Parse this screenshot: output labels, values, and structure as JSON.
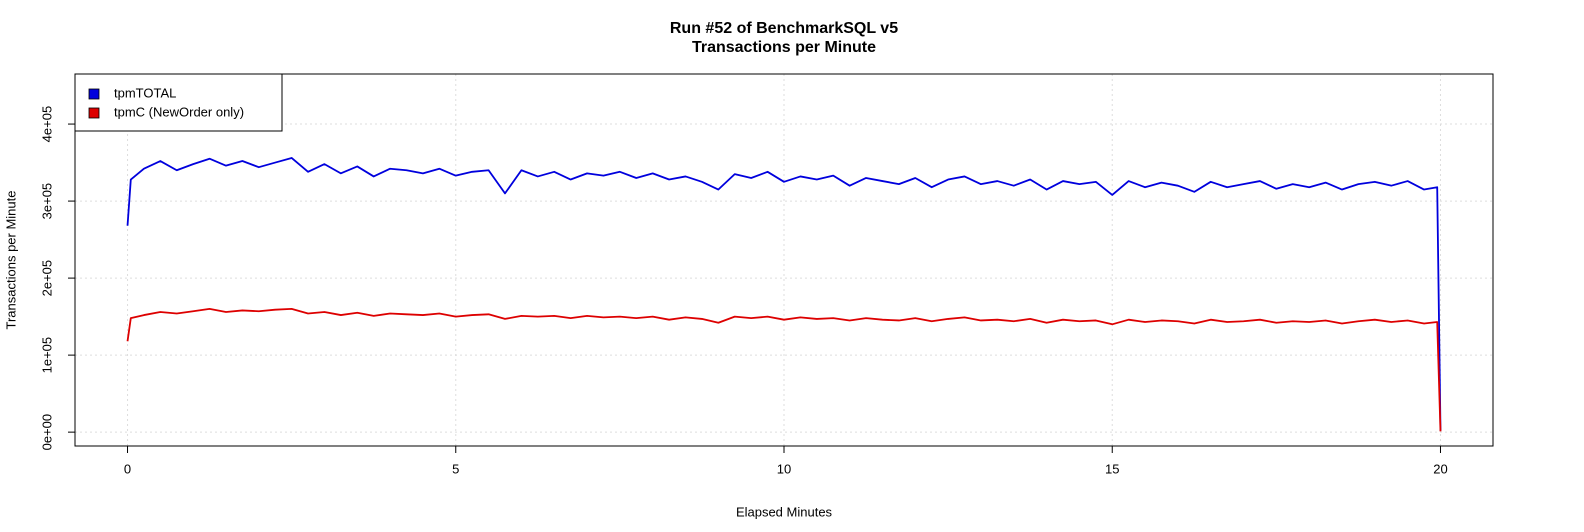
{
  "chart_data": {
    "type": "line",
    "title": "Run #52 of BenchmarkSQL v5",
    "subtitle": "Transactions per Minute",
    "x_label": "Elapsed Minutes",
    "y_label": "Transactions per Minute",
    "x": [
      0,
      0.05,
      0.25,
      0.5,
      0.75,
      1,
      1.25,
      1.5,
      1.75,
      2,
      2.25,
      2.5,
      2.75,
      3,
      3.25,
      3.5,
      3.75,
      4,
      4.25,
      4.5,
      4.75,
      5,
      5.25,
      5.5,
      5.75,
      6,
      6.25,
      6.5,
      6.75,
      7,
      7.25,
      7.5,
      7.75,
      8,
      8.25,
      8.5,
      8.75,
      9,
      9.25,
      9.5,
      9.75,
      10,
      10.25,
      10.5,
      10.75,
      11,
      11.25,
      11.5,
      11.75,
      12,
      12.25,
      12.5,
      12.75,
      13,
      13.25,
      13.5,
      13.75,
      14,
      14.25,
      14.5,
      14.75,
      15,
      15.25,
      15.5,
      15.75,
      16,
      16.25,
      16.5,
      16.75,
      17,
      17.25,
      17.5,
      17.75,
      18,
      18.25,
      18.5,
      18.75,
      19,
      19.25,
      19.5,
      19.75,
      19.95,
      20
    ],
    "series": [
      {
        "name": "tpmTOTAL",
        "color": "#0000dd",
        "values": [
          268000,
          328000,
          342000,
          352000,
          340000,
          348000,
          355000,
          346000,
          352000,
          344000,
          350000,
          356000,
          338000,
          348000,
          336000,
          345000,
          332000,
          342000,
          340000,
          336000,
          342000,
          333000,
          338000,
          340000,
          310000,
          340000,
          332000,
          338000,
          328000,
          336000,
          333000,
          338000,
          330000,
          336000,
          328000,
          332000,
          325000,
          315000,
          335000,
          330000,
          338000,
          325000,
          332000,
          328000,
          333000,
          320000,
          330000,
          326000,
          322000,
          330000,
          318000,
          328000,
          332000,
          322000,
          326000,
          320000,
          328000,
          315000,
          326000,
          322000,
          325000,
          308000,
          326000,
          318000,
          324000,
          320000,
          312000,
          325000,
          318000,
          322000,
          326000,
          316000,
          322000,
          318000,
          324000,
          315000,
          322000,
          325000,
          320000,
          326000,
          315000,
          318000,
          2000
        ]
      },
      {
        "name": "tpmC (NewOrder only)",
        "color": "#dd0000",
        "values": [
          118000,
          148000,
          152000,
          156000,
          154000,
          157000,
          160000,
          156000,
          158000,
          157000,
          159000,
          160000,
          154000,
          156000,
          152000,
          155000,
          151000,
          154000,
          153000,
          152000,
          154000,
          150000,
          152000,
          153000,
          147000,
          151000,
          150000,
          151000,
          148000,
          151000,
          149000,
          150000,
          148000,
          150000,
          146000,
          149000,
          147000,
          142000,
          150000,
          148000,
          150000,
          146000,
          149000,
          147000,
          148000,
          145000,
          148000,
          146000,
          145000,
          148000,
          144000,
          147000,
          149000,
          145000,
          146000,
          144000,
          147000,
          142000,
          146000,
          144000,
          145000,
          140000,
          146000,
          143000,
          145000,
          144000,
          141000,
          146000,
          143000,
          144000,
          146000,
          142000,
          144000,
          143000,
          145000,
          141000,
          144000,
          146000,
          143000,
          145000,
          141000,
          143000,
          1000
        ]
      }
    ],
    "xlim": [
      -0.8,
      20.8
    ],
    "xticks": [
      0,
      5,
      10,
      15,
      20
    ],
    "ylim": [
      -18000,
      465000
    ],
    "yticks": [
      {
        "value": 0,
        "label": "0e+00"
      },
      {
        "value": 100000,
        "label": "1e+05"
      },
      {
        "value": 200000,
        "label": "2e+05"
      },
      {
        "value": 300000,
        "label": "3e+05"
      },
      {
        "value": 400000,
        "label": "4e+05"
      }
    ],
    "grid": true,
    "legend": "topleft"
  }
}
